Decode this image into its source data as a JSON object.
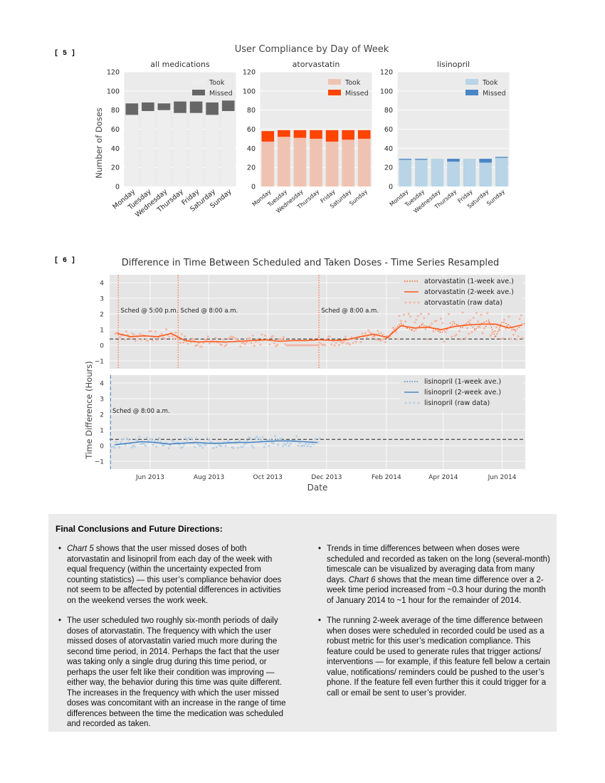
{
  "figure5": {
    "label": "[ 5 ]",
    "title": "User Compliance by Day of Week",
    "ylabel": "Number of Doses",
    "days": [
      "Monday",
      "Tuesday",
      "Wednesday",
      "Thursday",
      "Friday",
      "Saturday",
      "Sunday"
    ],
    "yticks": [
      "0",
      "20",
      "40",
      "60",
      "80",
      "100",
      "120"
    ],
    "legend_took": "Took",
    "legend_missed": "Missed"
  },
  "figure6": {
    "label": "[ 6 ]",
    "title": "Difference in Time Between Scheduled and Taken Doses - Time Series Resampled",
    "ylabel": "Time Difference  (Hours)",
    "xlabel": "Date",
    "xticks": [
      "Jun 2013",
      "Aug 2013",
      "Oct 2013",
      "Dec 2013",
      "Feb 2014",
      "Apr 2014",
      "Jun 2014"
    ],
    "yticks": [
      "4",
      "3",
      "2",
      "1",
      "0",
      "−1"
    ],
    "top_annotations": [
      "Sched @ 5:00 p.m.",
      "Sched @ 8:00 a.m.",
      "Sched @ 8:00 a.m."
    ],
    "bottom_annotation": "Sched @ 8:00 a.m.",
    "top_legend": [
      "atorvastatin (1-week ave.)",
      "atorvastatin (2-week ave.)",
      "atorvastatin (raw data)"
    ],
    "bottom_legend": [
      "lisinopril (1-week ave.)",
      "lisinopril (2-week ave.)",
      "lisinopril (raw data)"
    ]
  },
  "chart_data": [
    {
      "type": "bar",
      "title": "all medications",
      "categories": [
        "Monday",
        "Tuesday",
        "Wednesday",
        "Thursday",
        "Friday",
        "Saturday",
        "Sunday"
      ],
      "series": [
        {
          "name": "Took",
          "values": [
            75,
            79,
            80,
            77,
            77,
            75,
            79
          ]
        },
        {
          "name": "Missed",
          "values": [
            12,
            9,
            7,
            12,
            12,
            13,
            11
          ]
        }
      ],
      "stacked": true,
      "ylim": [
        0,
        120
      ],
      "ylabel": "Number of Doses",
      "colors": {
        "Took": "#eeeeee",
        "Missed": "#666666"
      }
    },
    {
      "type": "bar",
      "title": "atorvastatin",
      "categories": [
        "Monday",
        "Tuesday",
        "Wednesday",
        "Thursday",
        "Friday",
        "Saturday",
        "Sunday"
      ],
      "series": [
        {
          "name": "Took",
          "values": [
            47,
            52,
            51,
            50,
            47,
            49,
            50
          ]
        },
        {
          "name": "Missed",
          "values": [
            11,
            7,
            8,
            9,
            12,
            10,
            9
          ]
        }
      ],
      "stacked": true,
      "ylim": [
        0,
        120
      ],
      "colors": {
        "Took": "#f0c2b2",
        "Missed": "#ff4400"
      }
    },
    {
      "type": "bar",
      "title": "lisinopril",
      "categories": [
        "Monday",
        "Tuesday",
        "Wednesday",
        "Thursday",
        "Friday",
        "Saturday",
        "Sunday"
      ],
      "series": [
        {
          "name": "Took",
          "values": [
            28,
            28,
            29,
            26,
            29,
            25,
            30
          ]
        },
        {
          "name": "Missed",
          "values": [
            1,
            1,
            0,
            3,
            0,
            4,
            1
          ]
        }
      ],
      "stacked": true,
      "ylim": [
        0,
        120
      ],
      "colors": {
        "Took": "#b8d4e6",
        "Missed": "#4a86c5"
      }
    },
    {
      "type": "line",
      "title": "atorvastatin",
      "x_start": "2013-04-25",
      "x_range": [
        "2013-04-20",
        "2014-06-25"
      ],
      "ylim": [
        -1.5,
        4.5
      ],
      "reference_line_y": 0.4,
      "series": [
        {
          "name": "atorvastatin (2-week ave.)",
          "x": [
            "2013-04-28",
            "2013-05-12",
            "2013-05-26",
            "2013-06-09",
            "2013-06-23",
            "2013-07-07",
            "2013-07-21",
            "2013-08-04",
            "2013-08-18",
            "2013-09-01",
            "2013-09-15",
            "2013-09-29",
            "2013-10-13",
            "2013-10-27",
            "2013-11-10",
            "2013-11-24",
            "2013-12-08",
            "2013-12-22",
            "2014-01-05",
            "2014-01-19",
            "2014-02-02",
            "2014-02-16",
            "2014-03-02",
            "2014-03-16",
            "2014-03-30",
            "2014-04-13",
            "2014-04-27",
            "2014-05-11",
            "2014-05-25",
            "2014-06-08",
            "2014-06-22"
          ],
          "y": [
            0.75,
            0.55,
            0.6,
            0.55,
            0.75,
            0.3,
            0.2,
            0.25,
            0.2,
            0.25,
            0.3,
            0.35,
            0.25,
            0.3,
            0.3,
            0.35,
            0.3,
            0.35,
            0.55,
            0.7,
            0.5,
            1.25,
            1.1,
            1.15,
            1.0,
            1.2,
            1.3,
            1.35,
            1.35,
            1.1,
            1.3
          ]
        },
        {
          "name": "atorvastatin (1-week ave.)",
          "x": [
            "2014-01-19",
            "2014-01-26",
            "2014-02-02",
            "2014-02-09",
            "2014-02-16",
            "2014-02-23",
            "2014-03-02",
            "2014-03-09",
            "2014-03-16",
            "2014-03-23",
            "2014-03-30",
            "2014-04-06",
            "2014-04-13",
            "2014-04-20",
            "2014-04-27",
            "2014-05-04",
            "2014-05-11",
            "2014-05-18",
            "2014-05-25",
            "2014-06-01",
            "2014-06-08",
            "2014-06-15",
            "2014-06-22"
          ],
          "y": [
            0.6,
            0.8,
            0.4,
            1.0,
            1.4,
            1.1,
            0.9,
            1.3,
            1.2,
            1.0,
            0.8,
            1.1,
            1.4,
            1.1,
            1.5,
            1.0,
            1.4,
            1.6,
            0.5,
            1.5,
            1.3,
            0.9,
            1.4
          ]
        }
      ],
      "annotations": [
        "Sched @ 5:00 p.m.",
        "Sched @ 8:00 a.m.",
        "Sched @ 8:00 a.m."
      ]
    },
    {
      "type": "line",
      "title": "lisinopril",
      "x_range": [
        "2013-04-20",
        "2014-06-25"
      ],
      "ylim": [
        -1.5,
        4.5
      ],
      "reference_line_y": 0.4,
      "series": [
        {
          "name": "lisinopril (2-week ave.)",
          "x": [
            "2013-04-25",
            "2013-05-09",
            "2013-05-23",
            "2013-06-06",
            "2013-06-20",
            "2013-07-04",
            "2013-07-18",
            "2013-08-01",
            "2013-08-15",
            "2013-08-29",
            "2013-09-12",
            "2013-09-26",
            "2013-10-10",
            "2013-10-24",
            "2013-11-07",
            "2013-11-21"
          ],
          "y": [
            0.05,
            0.15,
            0.25,
            0.2,
            0.1,
            0.15,
            0.2,
            0.15,
            0.15,
            0.2,
            0.2,
            0.25,
            0.3,
            0.3,
            0.25,
            0.2
          ]
        }
      ],
      "annotations": [
        "Sched @ 8:00 a.m."
      ]
    }
  ],
  "conclusions": {
    "heading": "Final Conclusions and Future Directions:",
    "left_bullets": [
      {
        "ref": "Chart 5",
        "text": " shows that the user missed doses of both atorvastatin and lisinopril from each day of the week with equal frequency (within the uncertainty expected from counting statistics) — this user’s compliance behavior does not seem to be affected by potential differences in activities on the weekend verses the work week."
      },
      {
        "ref": "",
        "text": "The user scheduled two roughly six-month periods of daily doses of atorvastatin. The frequency with which the user missed doses of atorvastatin varied much more during the second time period, in 2014.  Perhaps the fact that the user was taking only a single drug during this time period, or perhaps the user felt like their condition was improving — either way, the behavior during this time was quite different.  The increases in the frequency with which the user missed doses was concomitant with an increase in the range of time differences between the time the medication was scheduled and recorded as taken."
      }
    ],
    "right_bullets": [
      {
        "ref": "",
        "text": "Trends in time differences between when doses were scheduled and recorded as taken on the long (several-month) timescale can be visualized by averaging data from many days.  "
      },
      {
        "ref": "Chart 6",
        "text": " shows that the mean time difference over a 2-week time period increased from ~0.3 hour during the month of January 2014 to ~1 hour for the remainder of 2014."
      },
      {
        "ref": "",
        "text": "The running 2-week average of the time difference between when doses were scheduled in recorded could be used as a robust metric for this user’s medication compliance.  This feature could be used to generate rules that trigger actions/ interventions — for example, if this feature fell below a certain value, notifications/ reminders could be pushed to the user’s phone.  If the feature fell even further this it could trigger for a call or email be sent to user’s provider."
      }
    ]
  }
}
